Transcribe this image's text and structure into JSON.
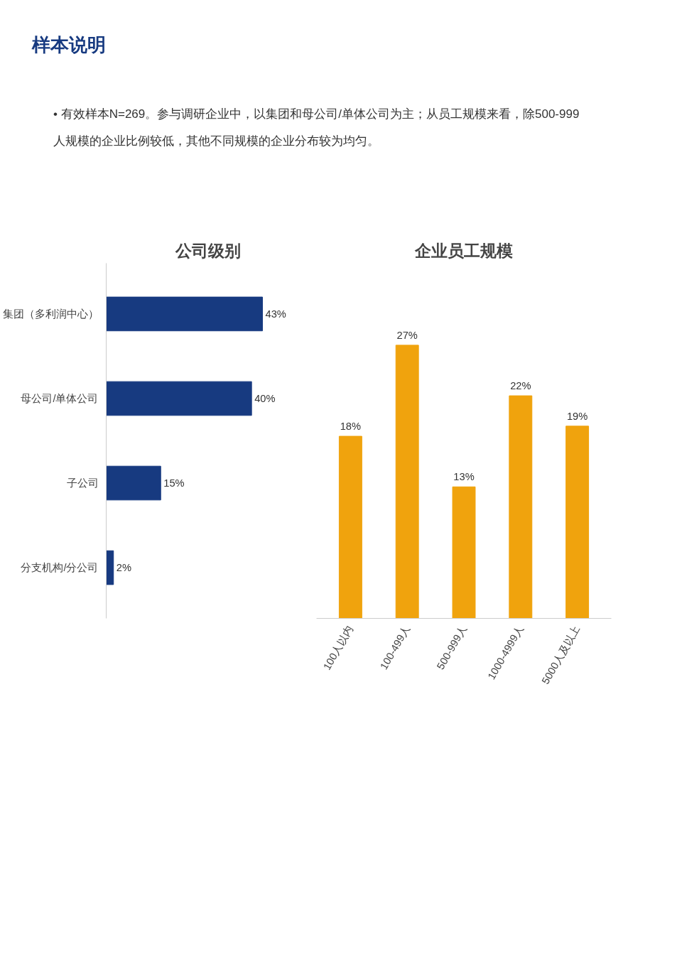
{
  "chart_data": [
    {
      "type": "bar",
      "orientation": "horizontal",
      "title": "公司级别",
      "categories": [
        "集团（多利润中心）",
        "母公司/单体公司",
        "子公司",
        "分支机构/分公司"
      ],
      "values": [
        43,
        40,
        15,
        2
      ],
      "value_labels": [
        "43%",
        "40%",
        "15%",
        "2%"
      ],
      "color": "#173a80",
      "grid": false,
      "tick_labels": "y",
      "annotations": [
        "样本说明",
        "• 有效样本N=269。参与调研企业中，以集团和母公司/单体公司为主；从员工规模来看，除500-999人规模的企业比例较低，其他不同规模的企业分布较为均匀。"
      ]
    },
    {
      "type": "bar",
      "title": "企业员工规模",
      "categories": [
        "100人以内",
        "100-499人",
        "500-999人",
        "1000-4999人",
        "5000人及以上"
      ],
      "values": [
        18,
        27,
        13,
        22,
        19
      ],
      "value_labels": [
        "18%",
        "27%",
        "13%",
        "22%",
        "19%"
      ],
      "color": "#f0a30d",
      "grid": false,
      "tick_labels": "x"
    }
  ]
}
